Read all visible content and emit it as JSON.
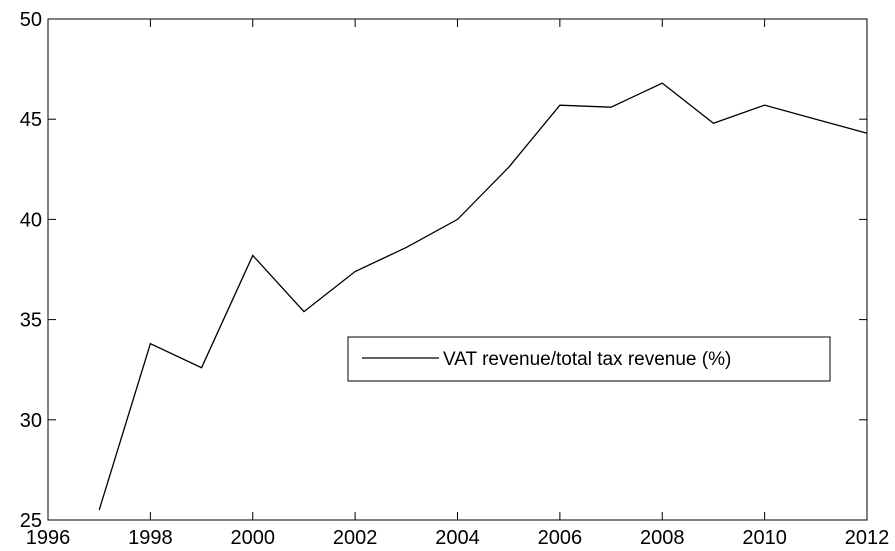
{
  "chart_data": {
    "type": "line",
    "title": "",
    "xlabel": "",
    "ylabel": "",
    "xlim": [
      1996,
      2012
    ],
    "ylim": [
      25,
      50
    ],
    "xticks": [
      1996,
      1998,
      2000,
      2002,
      2004,
      2006,
      2008,
      2010,
      2012
    ],
    "yticks": [
      25,
      30,
      35,
      40,
      45,
      50
    ],
    "grid": false,
    "legend_position": "center-right",
    "series": [
      {
        "name": "VAT revenue/total tax revenue (%)",
        "color": "#000000",
        "x": [
          1997,
          1998,
          1999,
          2000,
          2001,
          2002,
          2003,
          2004,
          2005,
          2006,
          2007,
          2008,
          2009,
          2010,
          2011,
          2012
        ],
        "y": [
          25.5,
          33.8,
          32.6,
          38.2,
          35.4,
          37.4,
          38.6,
          40.0,
          42.6,
          45.7,
          45.6,
          46.8,
          44.8,
          45.7,
          45.0,
          44.3
        ]
      }
    ]
  }
}
